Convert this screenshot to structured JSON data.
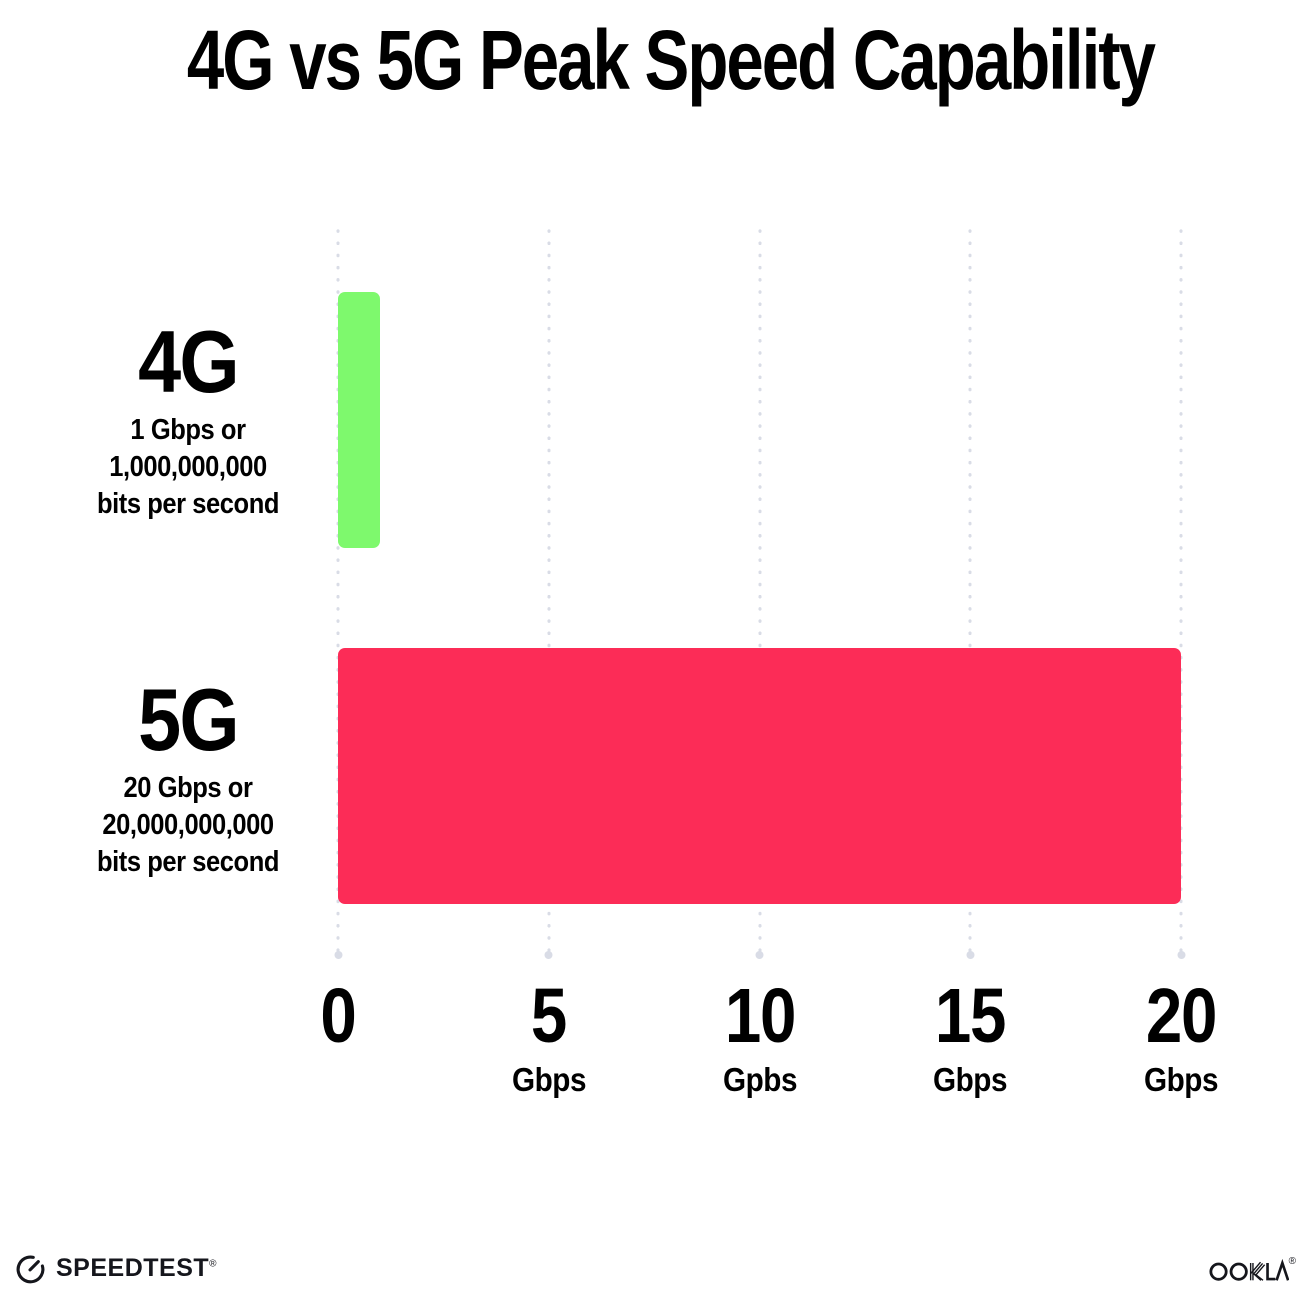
{
  "title": "4G vs 5G Peak Speed Capability",
  "chart_data": {
    "type": "bar",
    "orientation": "horizontal",
    "title": "4G vs 5G Peak Speed Capability",
    "categories": [
      "4G",
      "5G"
    ],
    "values": [
      1,
      20
    ],
    "value_unit": "Gbps",
    "bar_colors": [
      "#7EF96D",
      "#FC2C57"
    ],
    "xlabel": "Gbps",
    "xlim": [
      0,
      20
    ],
    "x_ticks": [
      {
        "value": 0,
        "label": "0",
        "unit": ""
      },
      {
        "value": 5,
        "label": "5",
        "unit": "Gbps"
      },
      {
        "value": 10,
        "label": "10",
        "unit": "Gpbs"
      },
      {
        "value": 15,
        "label": "15",
        "unit": "Gbps"
      },
      {
        "value": 20,
        "label": "20",
        "unit": "Gbps"
      }
    ],
    "grid": "dotted vertical gridlines at each tick, larger dot at bottom end",
    "legend": "none",
    "annotations": [
      "4G: 1 Gbps or 1,000,000,000 bits per second",
      "5G: 20 Gbps or 20,000,000,000 bits per second"
    ]
  },
  "rows": [
    {
      "label": "4G",
      "sub_lines": [
        "1 Gbps or",
        "1,000,000,000",
        "bits per second"
      ],
      "value": 1,
      "color": "#7EF96D"
    },
    {
      "label": "5G",
      "sub_lines": [
        "20 Gbps or",
        "20,000,000,000",
        "bits per second"
      ],
      "value": 20,
      "color": "#FC2C57"
    }
  ],
  "footer": {
    "speedtest_label": "SPEEDTEST",
    "speedtest_trademark": "®",
    "ookla_label": "OOKLA",
    "ookla_trademark": "®"
  },
  "colors": {
    "background": "#FFFFFF",
    "text": "#000000",
    "gridline": "#D9DCE6",
    "bar_4g": "#7EF96D",
    "bar_5g": "#FC2C57"
  }
}
